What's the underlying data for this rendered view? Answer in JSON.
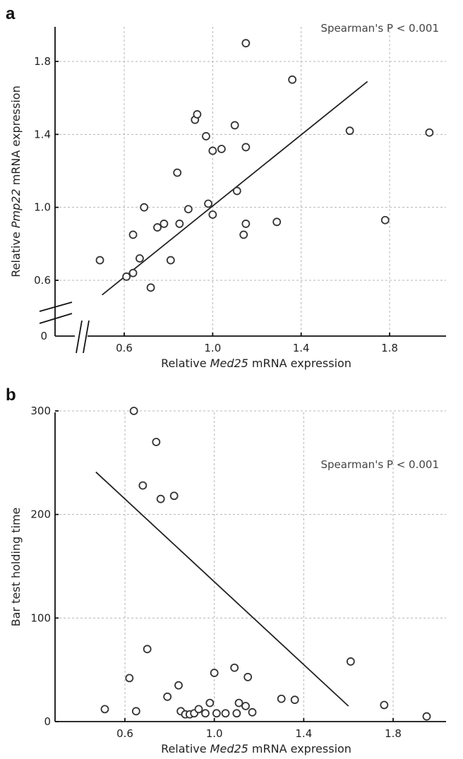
{
  "chart_data": [
    {
      "type": "scatter",
      "panel": "a",
      "annotation": "Spearman's P < 0.001",
      "xlabel": {
        "prefix": "Relative ",
        "italic": "Med25",
        "suffix": " mRNA expression"
      },
      "ylabel": {
        "prefix": "Relative ",
        "italic": "Pmp22",
        "suffix": " mRNA expression"
      },
      "xlim": [
        0.4,
        2.1
      ],
      "ylim": [
        0.35,
        2.0
      ],
      "x_ticks": [
        "0.6",
        "1.0",
        "1.4",
        "1.8"
      ],
      "y_ticks": [
        "0.6",
        "1.0",
        "1.4",
        "1.8"
      ],
      "y_zero_label": "0",
      "axis_break": true,
      "grid": true,
      "trendline": {
        "x": [
          0.5,
          1.7
        ],
        "y": [
          0.52,
          1.69
        ]
      },
      "points": [
        [
          0.49,
          0.71
        ],
        [
          0.61,
          0.62
        ],
        [
          0.64,
          0.64
        ],
        [
          0.64,
          0.85
        ],
        [
          0.67,
          0.72
        ],
        [
          0.69,
          1.0
        ],
        [
          0.72,
          0.56
        ],
        [
          0.75,
          0.89
        ],
        [
          0.78,
          0.91
        ],
        [
          0.81,
          0.71
        ],
        [
          0.84,
          1.19
        ],
        [
          0.85,
          0.91
        ],
        [
          0.89,
          0.99
        ],
        [
          0.92,
          1.48
        ],
        [
          0.93,
          1.51
        ],
        [
          0.97,
          1.39
        ],
        [
          0.98,
          1.02
        ],
        [
          1.0,
          1.31
        ],
        [
          1.0,
          0.96
        ],
        [
          1.04,
          1.32
        ],
        [
          1.1,
          1.45
        ],
        [
          1.11,
          1.09
        ],
        [
          1.14,
          0.85
        ],
        [
          1.15,
          0.91
        ],
        [
          1.15,
          1.33
        ],
        [
          1.15,
          1.9
        ],
        [
          1.29,
          0.92
        ],
        [
          1.36,
          1.7
        ],
        [
          1.62,
          1.42
        ],
        [
          1.78,
          0.93
        ],
        [
          1.98,
          1.41
        ]
      ]
    },
    {
      "type": "scatter",
      "panel": "b",
      "annotation": "Spearman's P < 0.001",
      "xlabel": {
        "prefix": "Relative ",
        "italic": "Med25",
        "suffix": " mRNA expression"
      },
      "ylabel": {
        "prefix": "Bar test holding time",
        "italic": "",
        "suffix": ""
      },
      "xlim": [
        0.4,
        2.0
      ],
      "ylim": [
        0,
        325
      ],
      "x_ticks": [
        "0.6",
        "1.0",
        "1.4",
        "1.8"
      ],
      "y_ticks": [
        "0",
        "100",
        "200",
        "300"
      ],
      "grid": true,
      "trendline": {
        "x": [
          0.47,
          1.6
        ],
        "y": [
          241,
          15
        ]
      },
      "points": [
        [
          0.51,
          12
        ],
        [
          0.62,
          42
        ],
        [
          0.64,
          300
        ],
        [
          0.65,
          10
        ],
        [
          0.68,
          228
        ],
        [
          0.7,
          70
        ],
        [
          0.74,
          270
        ],
        [
          0.76,
          215
        ],
        [
          0.79,
          24
        ],
        [
          0.82,
          218
        ],
        [
          0.84,
          35
        ],
        [
          0.85,
          10
        ],
        [
          0.87,
          7
        ],
        [
          0.89,
          7
        ],
        [
          0.91,
          8
        ],
        [
          0.93,
          12
        ],
        [
          0.96,
          8
        ],
        [
          0.98,
          18
        ],
        [
          1.0,
          47
        ],
        [
          1.01,
          8
        ],
        [
          1.05,
          8
        ],
        [
          1.09,
          52
        ],
        [
          1.1,
          8
        ],
        [
          1.11,
          18
        ],
        [
          1.14,
          15
        ],
        [
          1.15,
          43
        ],
        [
          1.17,
          9
        ],
        [
          1.3,
          22
        ],
        [
          1.36,
          21
        ],
        [
          1.61,
          58
        ],
        [
          1.76,
          16
        ],
        [
          1.95,
          5
        ]
      ]
    }
  ]
}
